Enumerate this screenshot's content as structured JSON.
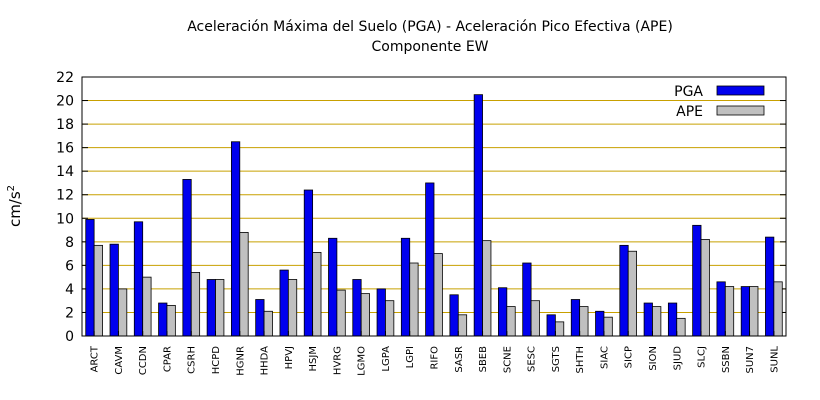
{
  "chart_data": {
    "type": "bar",
    "title": "Aceleración Máxima del Suelo (PGA) -  Aceleración Pico Efectiva (APE)",
    "subtitle": "Componente EW",
    "ylabel": "cm/s",
    "ylabel_sup": "2",
    "xlabel": "",
    "ylim": [
      0,
      22
    ],
    "yticks": [
      0,
      2,
      4,
      6,
      8,
      10,
      12,
      14,
      16,
      18,
      20,
      22
    ],
    "grid": true,
    "legend_position": "top-right",
    "categories": [
      "ARCT",
      "CAVM",
      "CCDN",
      "CPAR",
      "CSRH",
      "HCPD",
      "HGNR",
      "HHDA",
      "HPVJ",
      "HSJM",
      "HVRG",
      "LGMO",
      "LGPA",
      "LGPI",
      "RIFO",
      "SASR",
      "SBEB",
      "SCNE",
      "SESC",
      "SGTS",
      "SHTH",
      "SIAC",
      "SICP",
      "SION",
      "SJUD",
      "SLCJ",
      "SSBN",
      "SUN7",
      "SUNL"
    ],
    "series": [
      {
        "name": "PGA",
        "color": "#0000ee",
        "values": [
          9.9,
          7.8,
          9.7,
          2.8,
          13.3,
          4.8,
          16.5,
          3.1,
          5.6,
          12.4,
          8.3,
          4.8,
          4.0,
          8.3,
          13.0,
          3.5,
          20.5,
          4.1,
          6.2,
          1.8,
          3.1,
          2.1,
          7.7,
          2.8,
          2.8,
          9.4,
          4.6,
          4.2,
          8.4
        ]
      },
      {
        "name": "APE",
        "color": "#c0c0c0",
        "values": [
          7.7,
          4.0,
          5.0,
          2.6,
          5.4,
          4.8,
          8.8,
          2.1,
          4.8,
          7.1,
          3.9,
          3.6,
          3.0,
          6.2,
          7.0,
          1.8,
          8.1,
          2.5,
          3.0,
          1.2,
          2.5,
          1.6,
          7.2,
          2.5,
          1.5,
          8.2,
          4.2,
          4.2,
          4.6
        ]
      }
    ]
  }
}
